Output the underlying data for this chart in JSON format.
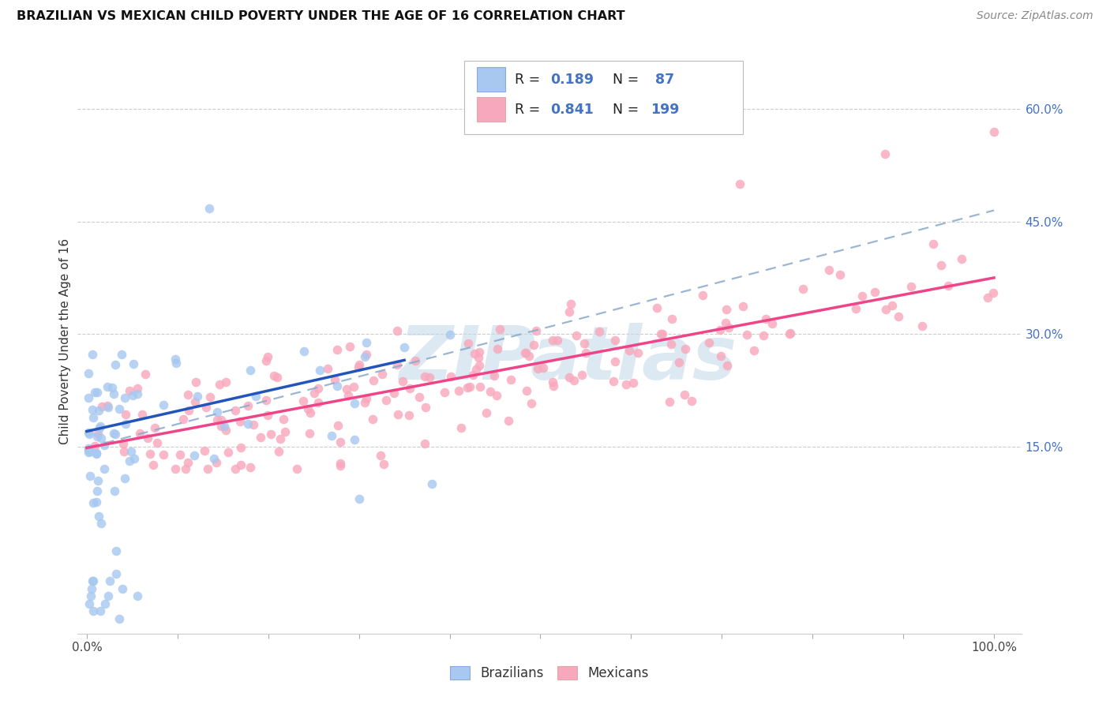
{
  "title": "BRAZILIAN VS MEXICAN CHILD POVERTY UNDER THE AGE OF 16 CORRELATION CHART",
  "source": "Source: ZipAtlas.com",
  "ylabel": "Child Poverty Under the Age of 16",
  "brazil_color": "#a8c8f0",
  "mexico_color": "#f8a8bc",
  "brazil_line_color": "#2255bb",
  "mexico_line_color": "#ee4488",
  "dashed_line_color": "#88aacc",
  "brazil_R": "0.189",
  "brazil_N": "87",
  "mexico_R": "0.841",
  "mexico_N": "199",
  "ytick_pos": [
    0.15,
    0.3,
    0.45,
    0.6
  ],
  "ytick_labels": [
    "15.0%",
    "30.0%",
    "45.0%",
    "60.0%"
  ],
  "xtick_pos": [
    0.0,
    0.1,
    0.2,
    0.3,
    0.4,
    0.5,
    0.6,
    0.7,
    0.8,
    0.9,
    1.0
  ],
  "xtick_labels": [
    "0.0%",
    "",
    "",
    "",
    "",
    "",
    "",
    "",
    "",
    "",
    "100.0%"
  ],
  "xlim": [
    -0.01,
    1.03
  ],
  "ylim": [
    -0.1,
    0.68
  ],
  "brazil_line_x": [
    0.0,
    0.35
  ],
  "brazil_line_y": [
    0.17,
    0.265
  ],
  "mexico_line_x": [
    0.0,
    1.0
  ],
  "mexico_line_y": [
    0.148,
    0.375
  ],
  "dash_line_x": [
    0.0,
    1.0
  ],
  "dash_line_y": [
    0.148,
    0.465
  ],
  "watermark_text": "ZIPatlas",
  "watermark_color": "#c5daea",
  "scatter_marker_size": 70
}
